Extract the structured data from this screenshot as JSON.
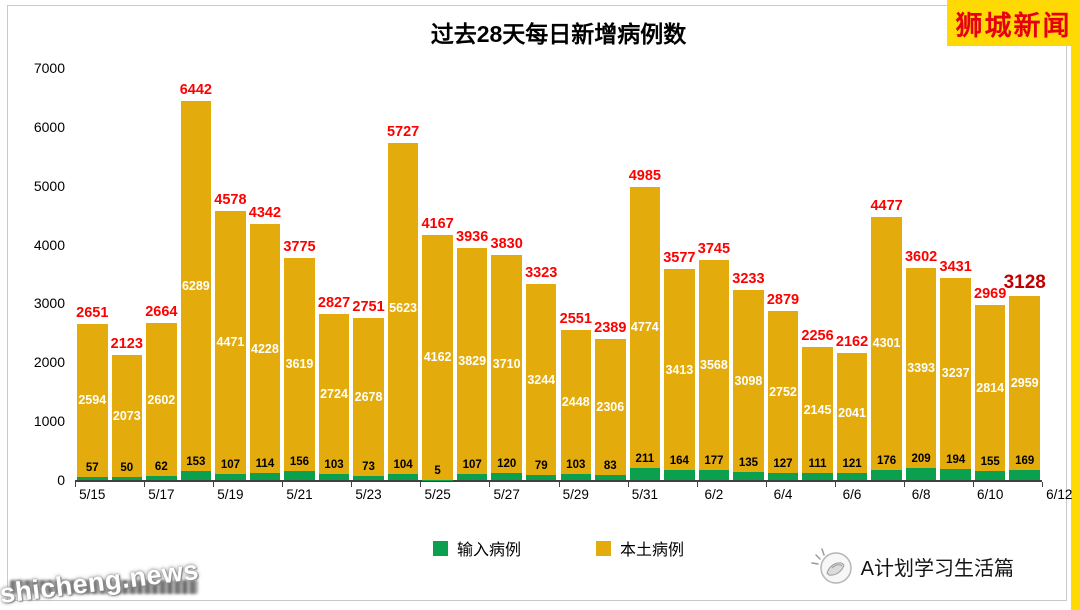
{
  "brand": {
    "name": "狮城新闻"
  },
  "chart_data": {
    "type": "bar",
    "stacked": true,
    "title": "过去28天每日新增病例数",
    "xlabel": "",
    "ylabel": "",
    "ylim": [
      0,
      7000
    ],
    "yticks": [
      0,
      1000,
      2000,
      3000,
      4000,
      5000,
      6000,
      7000
    ],
    "grid": false,
    "legend_position": "bottom",
    "x_tick_labels": [
      "5/15",
      "5/17",
      "5/19",
      "5/21",
      "5/23",
      "5/25",
      "5/27",
      "5/29",
      "5/31",
      "6/2",
      "6/4",
      "6/6",
      "6/8",
      "6/10",
      "6/12"
    ],
    "dates": [
      "5/15",
      "5/16",
      "5/17",
      "5/18",
      "5/19",
      "5/20",
      "5/21",
      "5/22",
      "5/23",
      "5/24",
      "5/25",
      "5/26",
      "5/27",
      "5/28",
      "5/29",
      "5/30",
      "5/31",
      "6/1",
      "6/2",
      "6/3",
      "6/4",
      "6/5",
      "6/6",
      "6/7",
      "6/8",
      "6/9",
      "6/10",
      "6/11"
    ],
    "series": [
      {
        "name": "输入病例",
        "color": "#0aa04e",
        "values": [
          57,
          50,
          62,
          153,
          107,
          114,
          156,
          103,
          73,
          104,
          5,
          107,
          120,
          79,
          103,
          83,
          211,
          164,
          177,
          135,
          127,
          111,
          121,
          176,
          209,
          194,
          155,
          169
        ]
      },
      {
        "name": "本土病例",
        "color": "#e3ab0b",
        "values": [
          2594,
          2073,
          2602,
          6289,
          4471,
          4228,
          3619,
          2724,
          2678,
          5623,
          4162,
          3829,
          3710,
          3244,
          2448,
          2306,
          4774,
          3413,
          3568,
          3098,
          2752,
          2145,
          2041,
          4301,
          3393,
          3237,
          2814,
          2959
        ]
      }
    ],
    "totals": [
      2651,
      2123,
      2664,
      6442,
      4578,
      4342,
      3775,
      2827,
      2751,
      5727,
      4167,
      3936,
      3830,
      3323,
      2551,
      2389,
      4985,
      3577,
      3745,
      3233,
      2879,
      2256,
      2162,
      4477,
      3602,
      3431,
      2969,
      3128
    ],
    "total_label_color": "#fe0000",
    "last_total_highlight_color": "#c00000"
  },
  "footer": {
    "logo_text": "A计划学习生活篇",
    "watermark": "shicheng.news"
  }
}
